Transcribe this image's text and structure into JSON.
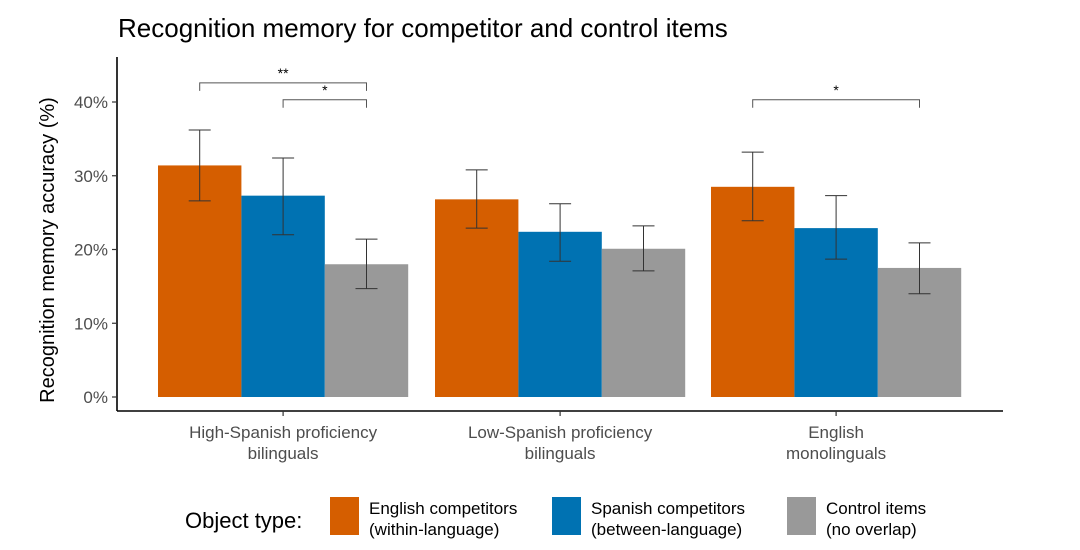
{
  "chart_data": {
    "type": "bar",
    "title": "Recognition memory for competitor and control items",
    "xlabel": "",
    "ylabel": "Recognition memory accuracy (%)",
    "ylim": [
      0,
      45
    ],
    "yticks": [
      0,
      10,
      20,
      30,
      40
    ],
    "ytick_labels": [
      "0%",
      "10%",
      "20%",
      "30%",
      "40%"
    ],
    "grid": false,
    "categories": [
      [
        "High-Spanish proficiency",
        "bilinguals"
      ],
      [
        "Low-Spanish proficiency",
        "bilinguals"
      ],
      [
        "English",
        "monolinguals"
      ]
    ],
    "series": [
      {
        "name": "English competitors (within-language)",
        "legend_lines": [
          "English competitors",
          "(within-language)"
        ],
        "color": "#D55E00",
        "values": [
          31.4,
          26.8,
          28.5
        ],
        "err_low": [
          26.6,
          22.9,
          23.9
        ],
        "err_high": [
          36.2,
          30.8,
          33.2
        ]
      },
      {
        "name": "Spanish competitors (between-language)",
        "legend_lines": [
          "Spanish competitors",
          "(between-language)"
        ],
        "color": "#0072B2",
        "values": [
          27.3,
          22.4,
          22.9
        ],
        "err_low": [
          22.0,
          18.4,
          18.7
        ],
        "err_high": [
          32.4,
          26.2,
          27.3
        ]
      },
      {
        "name": "Control items (no overlap)",
        "legend_lines": [
          "Control items",
          "(no overlap)"
        ],
        "color": "#999999",
        "values": [
          18.0,
          20.1,
          17.5
        ],
        "err_low": [
          14.7,
          17.1,
          14.0
        ],
        "err_high": [
          21.4,
          23.2,
          20.9
        ]
      }
    ],
    "legend_title": "Object type:",
    "legend_position": "bottom",
    "annotations": [
      {
        "group": 0,
        "from_series": 0,
        "to_series": 2,
        "label": "**",
        "level": 42.6
      },
      {
        "group": 0,
        "from_series": 1,
        "to_series": 2,
        "label": "*",
        "level": 40.3
      },
      {
        "group": 2,
        "from_series": 0,
        "to_series": 2,
        "label": "*",
        "level": 40.3
      }
    ]
  }
}
